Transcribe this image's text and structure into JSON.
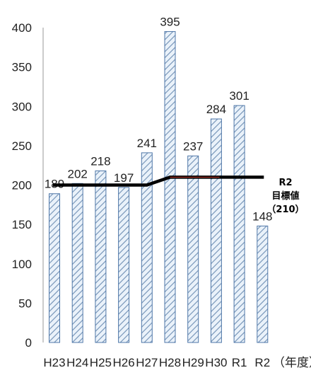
{
  "chart_data": {
    "type": "bar",
    "categories": [
      "H23",
      "H24",
      "H25",
      "H26",
      "H27",
      "H28",
      "H29",
      "H30",
      "R1",
      "R2"
    ],
    "values": [
      189,
      202,
      218,
      197,
      241,
      395,
      237,
      284,
      301,
      148
    ],
    "data_labels": [
      "189",
      "202",
      "218",
      "197",
      "241",
      "395",
      "237",
      "284",
      "301",
      "148"
    ],
    "x_unit_label": "（年度）",
    "y_ticks": [
      "0",
      "50",
      "100",
      "150",
      "200",
      "250",
      "300",
      "350",
      "400"
    ],
    "ylim": [
      0,
      400
    ],
    "bar_style": "diagonal-hatch",
    "bar_colors": {
      "fill": "#eaf2fa",
      "hatch": "#6f8fb4",
      "edge": "#4f77a8"
    },
    "target_line": {
      "label_lines": [
        "R2",
        "目標値",
        "（210）"
      ],
      "points": [
        {
          "x": "H23",
          "y": 200
        },
        {
          "x": "H27",
          "y": 200
        },
        {
          "x": "H28",
          "y": 210
        },
        {
          "x": "R2",
          "y": 210
        }
      ],
      "color": "#000000",
      "accent": "#c0392b"
    },
    "grid": false,
    "legend": "none"
  }
}
